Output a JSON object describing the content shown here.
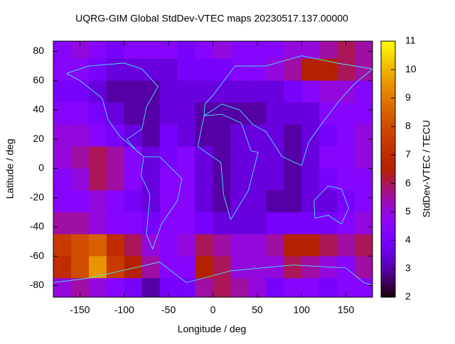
{
  "chart_data": {
    "type": "heatmap",
    "title": "UQRG-GIM Global StdDev-VTEC maps 20230517.137.00000",
    "x_label": "Longitude / deg",
    "y_label": "Latitude / deg",
    "colorbar_label": "StdDev-VTEC / TECU",
    "x": [
      -170,
      -150,
      -130,
      -110,
      -90,
      -70,
      -50,
      -30,
      -10,
      10,
      30,
      50,
      70,
      90,
      110,
      130,
      150,
      170
    ],
    "y": [
      82.5,
      67.5,
      52.5,
      37.5,
      22.5,
      7.5,
      -7.5,
      -22.5,
      -37.5,
      -52.5,
      -67.5,
      -82.5
    ],
    "values": [
      [
        4.5,
        5,
        4.5,
        4,
        4.5,
        4.5,
        4.5,
        4,
        4.5,
        5,
        4.5,
        4.5,
        4.5,
        5,
        5,
        5.5,
        6,
        5.5
      ],
      [
        4.5,
        4.5,
        4,
        3.5,
        3.5,
        3.5,
        3.5,
        4,
        4,
        4,
        4.5,
        4.5,
        5,
        5.5,
        6.5,
        6.5,
        6,
        5.5
      ],
      [
        4,
        4,
        3.5,
        3,
        3,
        3,
        3.5,
        3.5,
        3.5,
        3.5,
        3.5,
        3.5,
        3.5,
        4,
        4.5,
        5,
        5,
        4.5
      ],
      [
        4.5,
        4.5,
        4,
        3.5,
        3,
        3,
        3.5,
        3.5,
        3,
        3,
        3,
        3,
        3.5,
        3.5,
        3.5,
        4.5,
        4.5,
        4.5
      ],
      [
        5,
        5,
        4.5,
        4,
        3.5,
        3,
        4,
        3.5,
        3,
        3,
        3.5,
        3.5,
        3.5,
        3,
        3.5,
        4,
        4.5,
        5
      ],
      [
        5,
        5.5,
        6,
        5.5,
        4.5,
        3.5,
        4,
        4.5,
        3.5,
        3,
        3.5,
        3.5,
        3.5,
        3,
        3.5,
        4.5,
        4.5,
        5
      ],
      [
        4.5,
        5,
        6,
        5.5,
        4.5,
        3.5,
        4.5,
        4.5,
        3.5,
        3,
        3.5,
        3.5,
        3.5,
        3,
        3.5,
        4,
        4.5,
        4.5
      ],
      [
        4.5,
        4.5,
        5,
        4.5,
        4,
        3.5,
        4.5,
        4.5,
        3.5,
        3,
        3.5,
        3.5,
        3,
        3,
        3.5,
        3.5,
        4,
        4.5
      ],
      [
        5.5,
        5.5,
        5,
        4.5,
        4.5,
        4,
        4.5,
        4.5,
        4,
        3.5,
        3.5,
        3.5,
        4,
        4,
        4,
        4,
        4.5,
        5
      ],
      [
        7.5,
        8,
        8.5,
        7,
        6,
        5,
        4.5,
        5,
        6,
        5.5,
        5,
        5,
        5.5,
        6.5,
        6.5,
        6,
        5.5,
        6
      ],
      [
        7,
        8,
        9.5,
        7.5,
        6.5,
        5.5,
        4.5,
        4.5,
        6.5,
        6,
        5,
        5,
        5,
        6,
        5.5,
        5,
        4.5,
        5.5
      ],
      [
        5,
        5.5,
        5,
        4.5,
        4,
        3,
        4,
        4,
        5.5,
        6,
        5.5,
        5,
        4,
        4.5,
        4.5,
        4,
        4.5,
        4.5
      ]
    ],
    "xlim": [
      -180,
      180
    ],
    "ylim": [
      -88,
      87
    ],
    "clim": [
      2,
      11
    ],
    "xticks": [
      -150,
      -100,
      -50,
      0,
      50,
      100,
      150
    ],
    "yticks": [
      -80,
      -60,
      -40,
      -20,
      0,
      20,
      40,
      60,
      80
    ],
    "cticks": [
      2,
      3,
      4,
      5,
      6,
      7,
      8,
      9,
      10,
      11
    ]
  }
}
